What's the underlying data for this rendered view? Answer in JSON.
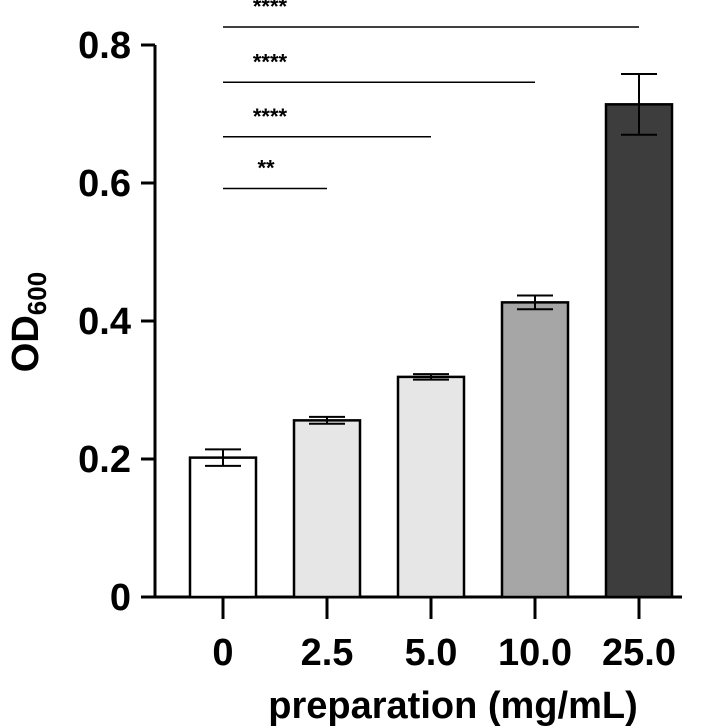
{
  "chart_data": {
    "type": "bar",
    "title": "",
    "xlabel": "preparation (mg/mL)",
    "ylabel": "OD",
    "ylabel_subscript": "600",
    "ylim": [
      0,
      0.8
    ],
    "yticks": [
      0,
      0.2,
      0.4,
      0.6,
      0.8
    ],
    "ytick_labels": [
      "0",
      "0.2",
      "0.4",
      "0.6",
      "0.8"
    ],
    "categories": [
      "0",
      "2.5",
      "5.0",
      "10.0",
      "25.0"
    ],
    "values": [
      0.202,
      0.256,
      0.319,
      0.427,
      0.714
    ],
    "errors": [
      0.012,
      0.005,
      0.004,
      0.01,
      0.044
    ],
    "colors": [
      "#ffffff",
      "#e6e6e6",
      "#e6e6e6",
      "#a6a6a6",
      "#3d3d3d"
    ],
    "significance": [
      {
        "from": 0,
        "to": 1,
        "label": "**",
        "y": 0.592
      },
      {
        "from": 0,
        "to": 2,
        "label": "****",
        "y": 0.667
      },
      {
        "from": 0,
        "to": 3,
        "label": "****",
        "y": 0.746
      },
      {
        "from": 0,
        "to": 4,
        "label": "****",
        "y": 0.826
      }
    ]
  }
}
